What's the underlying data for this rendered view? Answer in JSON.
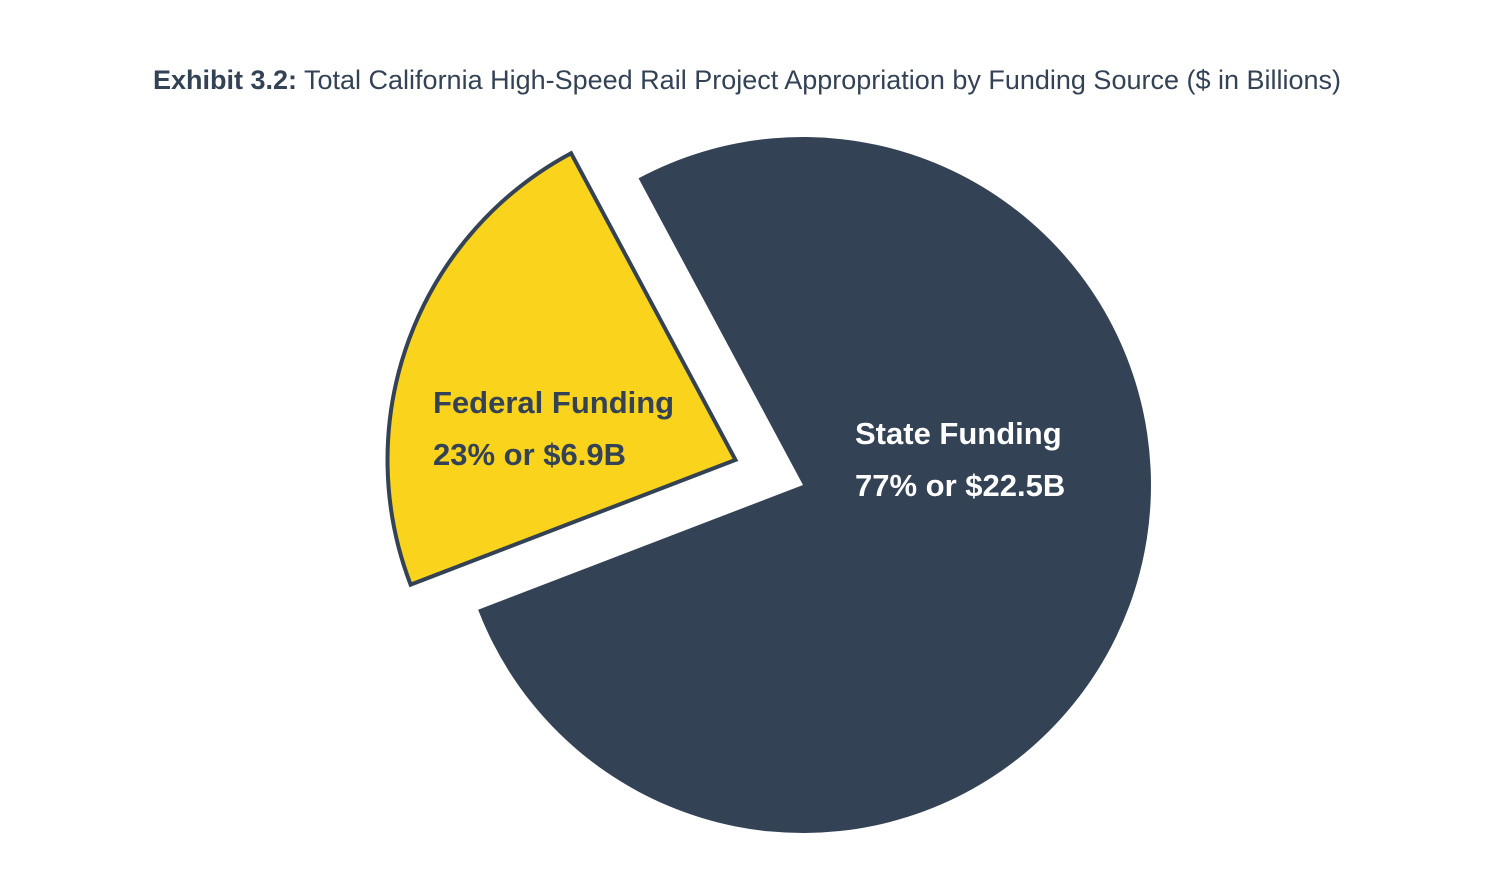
{
  "chart_data": {
    "type": "pie",
    "title_prefix": "Exhibit 3.2:",
    "title": "Total California High-Speed Rail Project Appropriation by Funding Source ($ in Billions)",
    "categories": [
      "Federal Funding",
      "State Funding"
    ],
    "values": [
      23,
      77
    ],
    "value_labels": [
      "23% or $6.9B",
      "77% or $22.5B"
    ],
    "colors": [
      "#f9d31c",
      "#344256"
    ],
    "label_colors": [
      "#344256",
      "#ffffff"
    ]
  }
}
